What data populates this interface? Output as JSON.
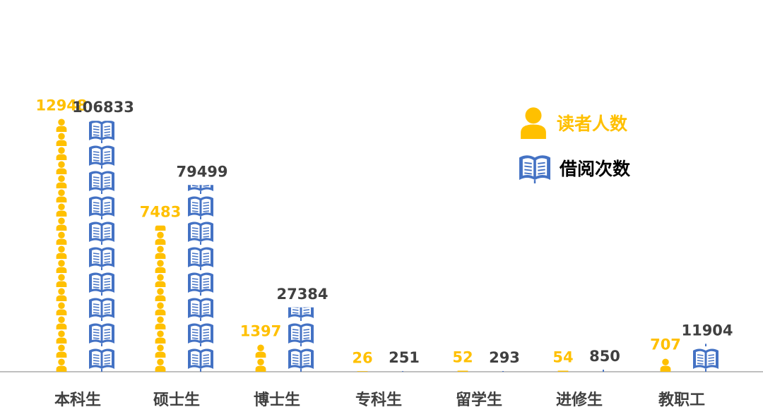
{
  "colors": {
    "readers": "#FFC000",
    "loans": "#4472C4",
    "loan_label": "#404040",
    "axis": "#BFBFBF",
    "category": "#404040"
  },
  "icons": {
    "readers": "person-icon",
    "loans": "book-icon"
  },
  "legend": {
    "position": "right",
    "items": [
      {
        "key": "readers",
        "label": "读者人数",
        "icon": "person-icon",
        "color": "#FFC000"
      },
      {
        "key": "loans",
        "label": "借阅次数",
        "icon": "book-icon",
        "color": "#000000"
      }
    ]
  },
  "chart_data": {
    "type": "bar",
    "style": "pictograph",
    "categories": [
      "本科生",
      "硕士生",
      "博士生",
      "专科生",
      "留学生",
      "进修生",
      "教职工"
    ],
    "series": [
      {
        "name": "读者人数",
        "icon": "person-icon",
        "values": [
          12948,
          7483,
          1397,
          26,
          52,
          54,
          707
        ]
      },
      {
        "name": "借阅次数",
        "icon": "book-icon",
        "values": [
          106833,
          79499,
          27384,
          251,
          293,
          850,
          11904
        ]
      }
    ],
    "grid": false
  }
}
